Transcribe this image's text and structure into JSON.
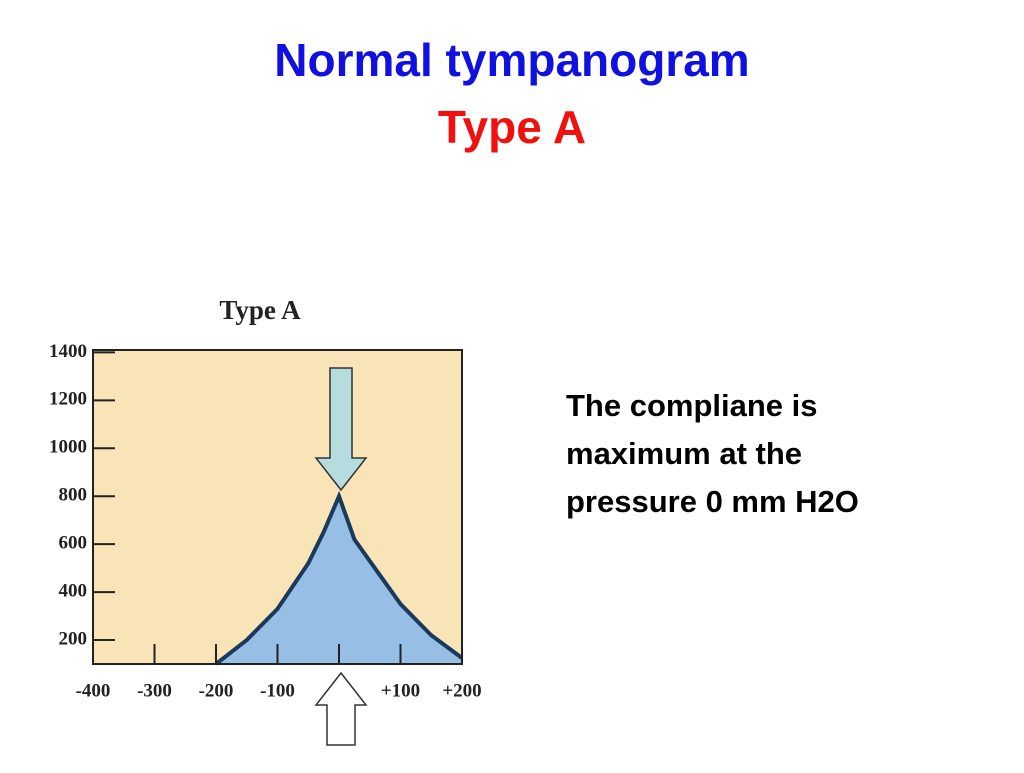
{
  "slide": {
    "title": "Normal tympanogram",
    "subtitle": "Type A",
    "note_lines": [
      "The compliane is",
      "maximum at the",
      "pressure 0 mm H2O"
    ]
  },
  "chart_data": {
    "type": "area",
    "title": "Type A",
    "x": [
      -200,
      -150,
      -100,
      -50,
      -25,
      0,
      25,
      50,
      100,
      150,
      200
    ],
    "values": [
      100,
      200,
      330,
      520,
      650,
      800,
      620,
      530,
      350,
      220,
      125
    ],
    "color": "#97bfe6",
    "line_color": "#1a3a5c",
    "background": "#f9e4b7",
    "xlim": [
      -400,
      200
    ],
    "xticks": [
      -400,
      -300,
      -200,
      -100,
      0,
      {
        "value": 100,
        "label": "+100"
      },
      {
        "value": 200,
        "label": "+200"
      }
    ],
    "ylim": [
      100,
      1410
    ],
    "yticks": [
      200,
      400,
      600,
      800,
      1000,
      1200,
      1400
    ]
  }
}
